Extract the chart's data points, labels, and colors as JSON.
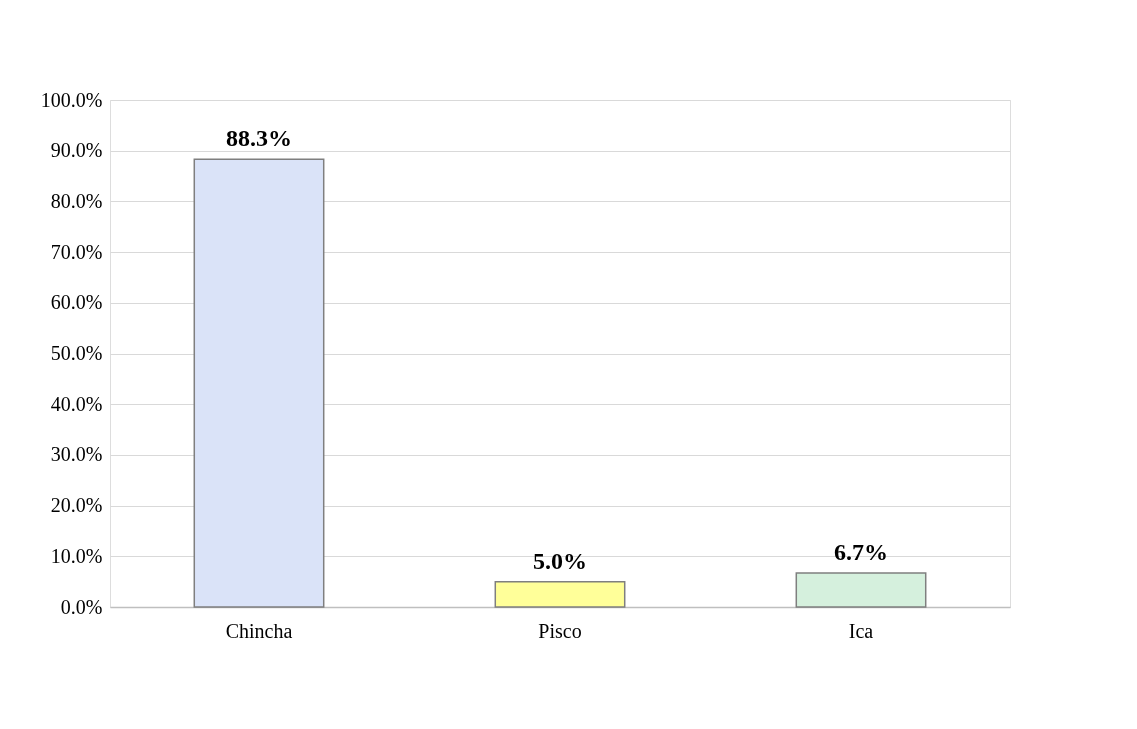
{
  "chart_data": {
    "type": "bar",
    "categories": [
      "Chincha",
      "Pisco",
      "Ica"
    ],
    "values": [
      88.3,
      5.0,
      6.7
    ],
    "colors": [
      "#dae3f8",
      "#ffff99",
      "#d5f0dd"
    ],
    "value_labels": [
      "88.3%",
      "5.0%",
      "6.7%"
    ],
    "ylim": [
      0,
      100
    ],
    "yticks": [
      {
        "value": 0,
        "label": "0.0%"
      },
      {
        "value": 10,
        "label": "10.0%"
      },
      {
        "value": 20,
        "label": "20.0%"
      },
      {
        "value": 30,
        "label": "30.0%"
      },
      {
        "value": 40,
        "label": "40.0%"
      },
      {
        "value": 50,
        "label": "50.0%"
      },
      {
        "value": 60,
        "label": "60.0%"
      },
      {
        "value": 70,
        "label": "70.0%"
      },
      {
        "value": 80,
        "label": "80.0%"
      },
      {
        "value": 90,
        "label": "90.0%"
      },
      {
        "value": 100,
        "label": "100.0%"
      }
    ],
    "grid": "y",
    "legend": false
  }
}
